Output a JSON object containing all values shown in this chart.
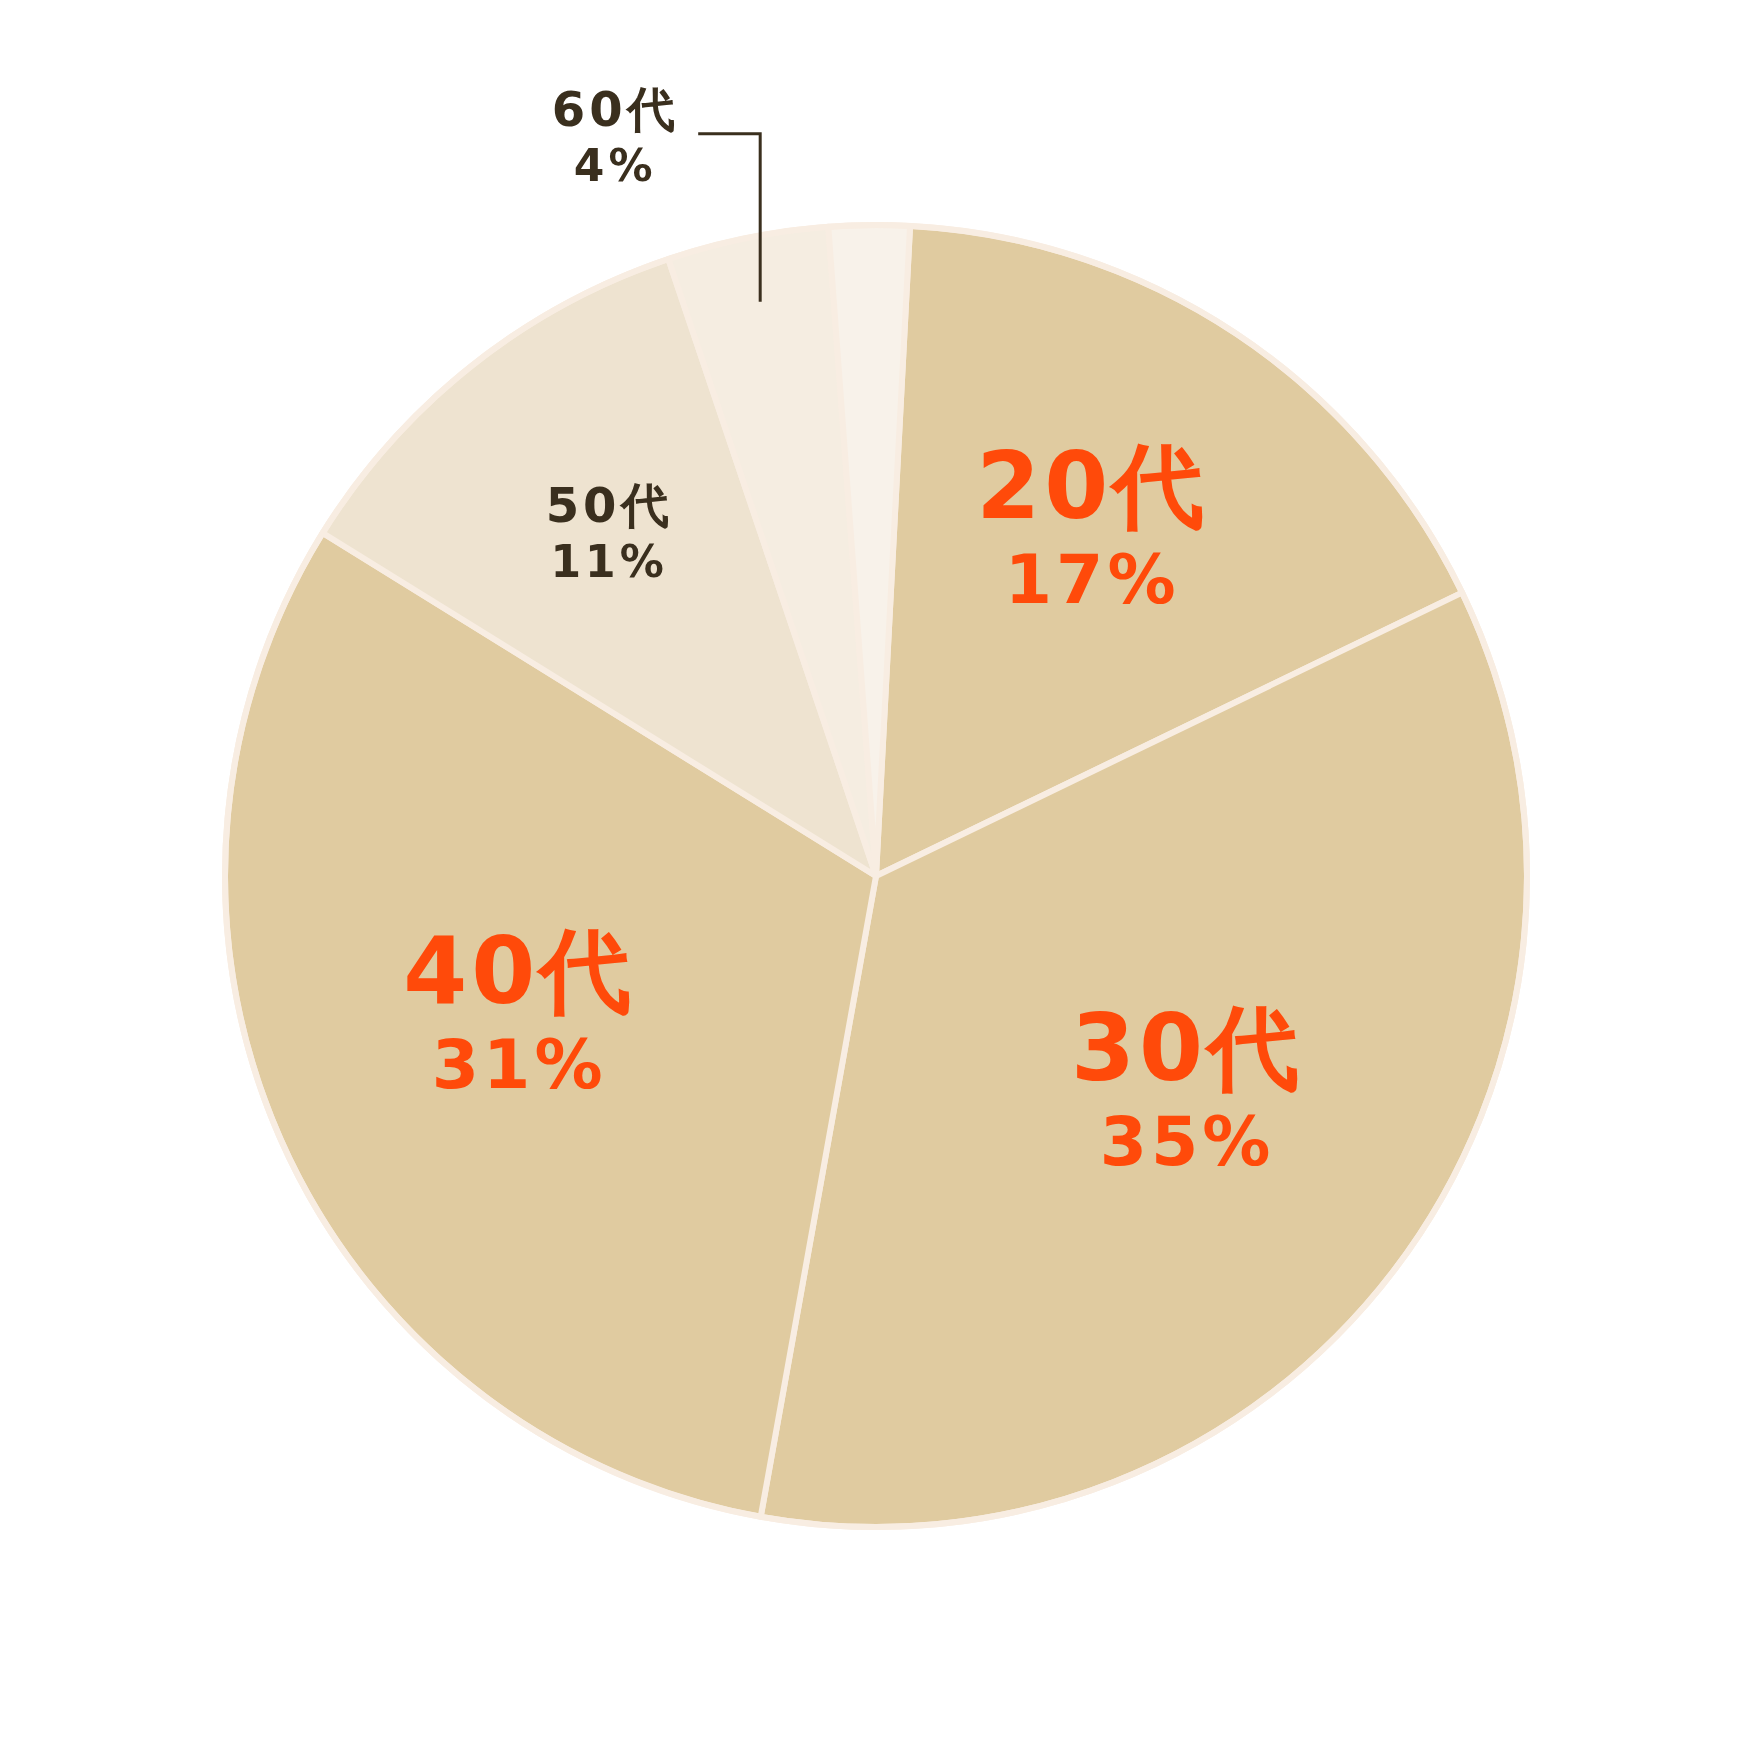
{
  "chart_data": {
    "type": "pie",
    "categories": [
      "20代",
      "30代",
      "40代",
      "50代",
      "60代",
      null
    ],
    "values": [
      17,
      35,
      31,
      11,
      4,
      2
    ],
    "colors": [
      "#e0cba0",
      "#e0cba0",
      "#e0cba0",
      "#eee3d0",
      "#f5ede1",
      "#f8f2ea"
    ],
    "value_labels": [
      "17%",
      "35%",
      "31%",
      "11%",
      "4%",
      null
    ]
  }
}
